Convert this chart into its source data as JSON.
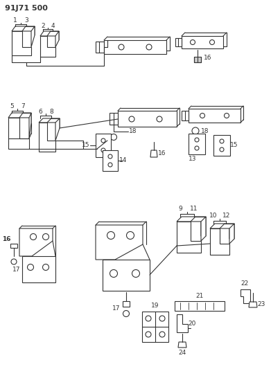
{
  "title": "91J71 500",
  "bg_color": "#ffffff",
  "line_color": "#333333",
  "figsize": [
    3.91,
    5.33
  ],
  "dpi": 100
}
